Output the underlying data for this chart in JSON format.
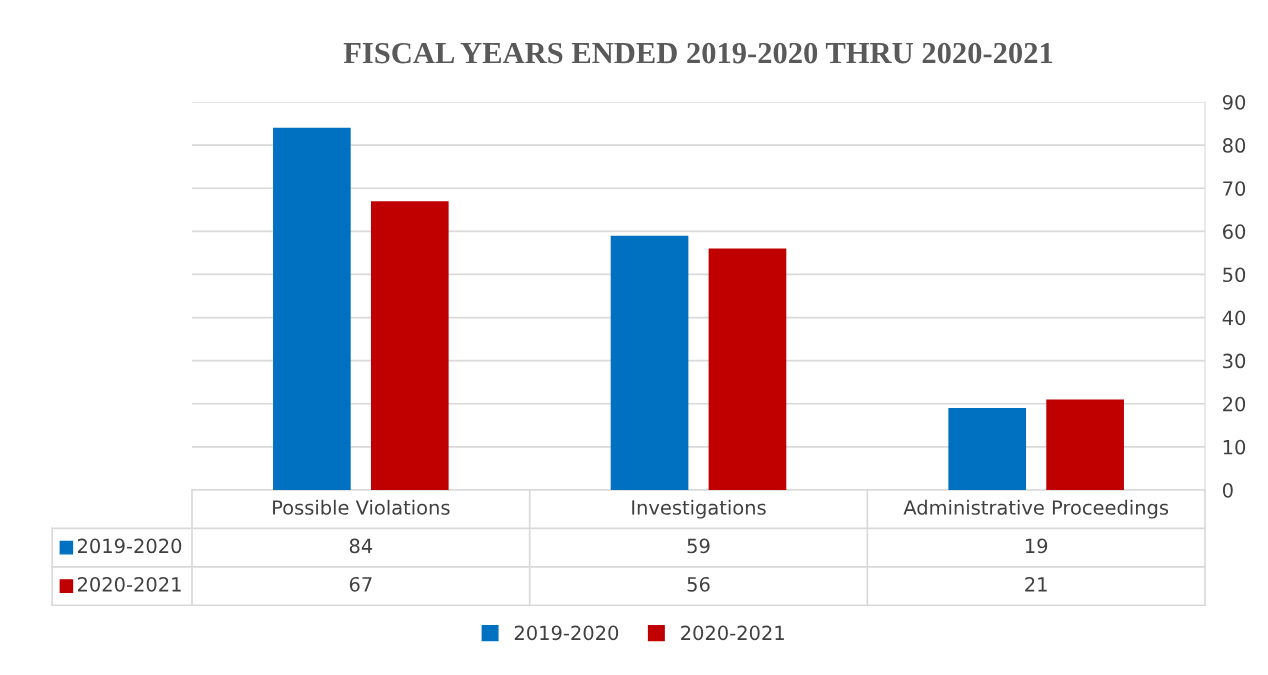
{
  "chart_data": {
    "type": "bar",
    "title": "FISCAL YEARS ENDED 2019-2020 THRU 2020-2021",
    "categories": [
      "Possible Violations",
      "Investigations",
      "Administrative Proceedings"
    ],
    "series": [
      {
        "name": "2019-2020",
        "color": "#0070c0",
        "values": [
          84,
          59,
          19
        ]
      },
      {
        "name": "2020-2021",
        "color": "#c00000",
        "values": [
          67,
          56,
          21
        ]
      }
    ],
    "ylim": [
      0,
      90
    ],
    "yticks": [
      0,
      10,
      20,
      30,
      40,
      50,
      60,
      70,
      80,
      90
    ],
    "grid": "y",
    "legend": "bottom",
    "data_labels": true
  }
}
